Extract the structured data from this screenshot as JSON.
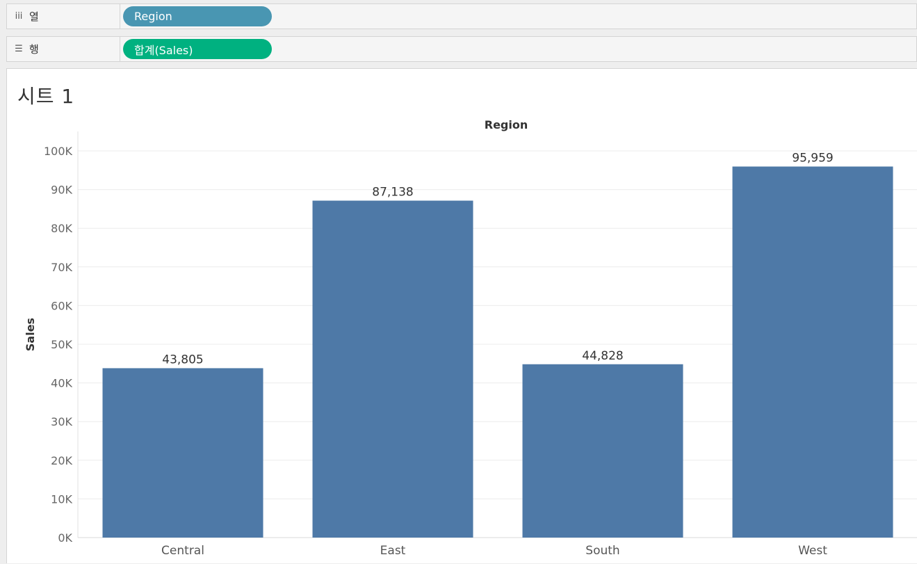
{
  "shelves": {
    "columns": {
      "icon": "columns-icon",
      "icon_glyph": "iii",
      "label": "열",
      "pill": "Region"
    },
    "rows": {
      "icon": "rows-icon",
      "icon_glyph": "☰",
      "label": "행",
      "pill": "합계(Sales)"
    }
  },
  "sheet": {
    "title": "시트 1"
  },
  "colors": {
    "bar": "#4e79a7",
    "dimension_pill": "#4996b2",
    "measure_pill": "#00b180"
  },
  "chart_data": {
    "type": "bar",
    "title": "",
    "xlabel": "Region",
    "ylabel": "Sales",
    "categories": [
      "Central",
      "East",
      "South",
      "West"
    ],
    "values": [
      43805,
      87138,
      44828,
      95959
    ],
    "value_labels": [
      "43,805",
      "87,138",
      "44,828",
      "95,959"
    ],
    "ylim": [
      0,
      100000
    ],
    "yticks": [
      {
        "value": 0,
        "label": "0K"
      },
      {
        "value": 10000,
        "label": "10K"
      },
      {
        "value": 20000,
        "label": "20K"
      },
      {
        "value": 30000,
        "label": "30K"
      },
      {
        "value": 40000,
        "label": "40K"
      },
      {
        "value": 50000,
        "label": "50K"
      },
      {
        "value": 60000,
        "label": "60K"
      },
      {
        "value": 70000,
        "label": "70K"
      },
      {
        "value": 80000,
        "label": "80K"
      },
      {
        "value": 90000,
        "label": "90K"
      },
      {
        "value": 100000,
        "label": "100K"
      }
    ],
    "grid": true,
    "xlabel_position": "top"
  }
}
